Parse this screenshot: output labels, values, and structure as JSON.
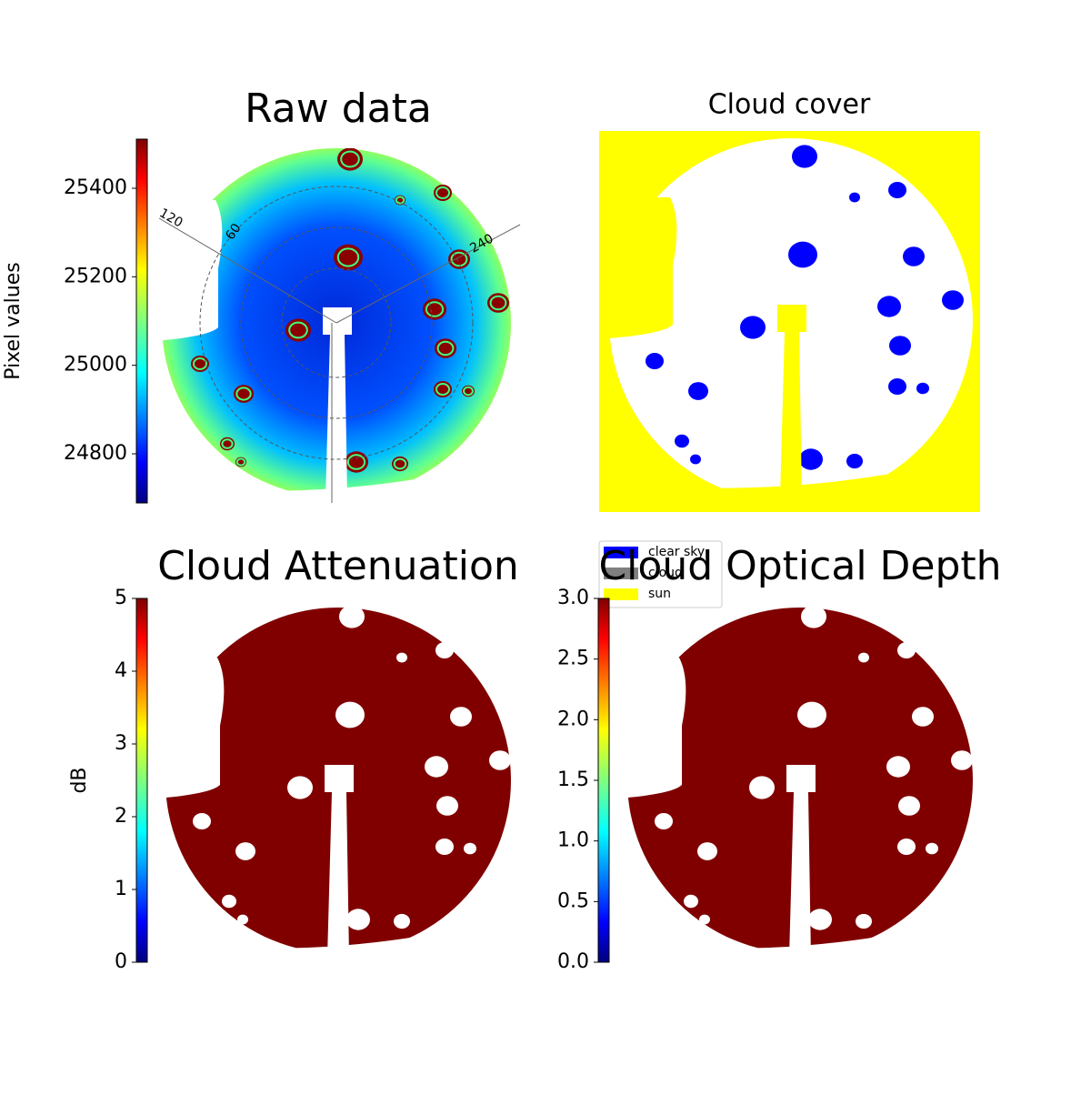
{
  "chart_data": [
    {
      "type": "image",
      "title": "Raw data",
      "colorbar": {
        "label": "Pixel values",
        "lim": [
          24689,
          25511
        ],
        "ticks": [
          24800,
          25000,
          25200,
          25400
        ]
      },
      "annotations": [
        "120",
        "60",
        "240"
      ]
    },
    {
      "type": "image",
      "title": "Cloud cover",
      "legend": [
        {
          "name": "clear sky",
          "color": "#0000ff"
        },
        {
          "name": "cloud",
          "color": "#808080"
        },
        {
          "name": "sun",
          "color": "#ffff00"
        }
      ]
    },
    {
      "type": "image",
      "title": "Cloud Attenuation",
      "colorbar": {
        "label": "dB",
        "lim": [
          0,
          5
        ],
        "ticks": [
          0,
          1,
          2,
          3,
          4,
          5
        ]
      }
    },
    {
      "type": "image",
      "title": "Cloud Optical Depth",
      "colorbar": {
        "lim": [
          0,
          3
        ],
        "ticks": [
          {
            "value": 0,
            "label": "0.0"
          },
          {
            "value": 0.5,
            "label": "0.5"
          },
          {
            "value": 1,
            "label": "1.0"
          },
          {
            "value": 1.5,
            "label": "1.5"
          },
          {
            "value": 2,
            "label": "2.0"
          },
          {
            "value": 2.5,
            "label": "2.5"
          },
          {
            "value": 3,
            "label": "3.0"
          }
        ]
      }
    }
  ]
}
